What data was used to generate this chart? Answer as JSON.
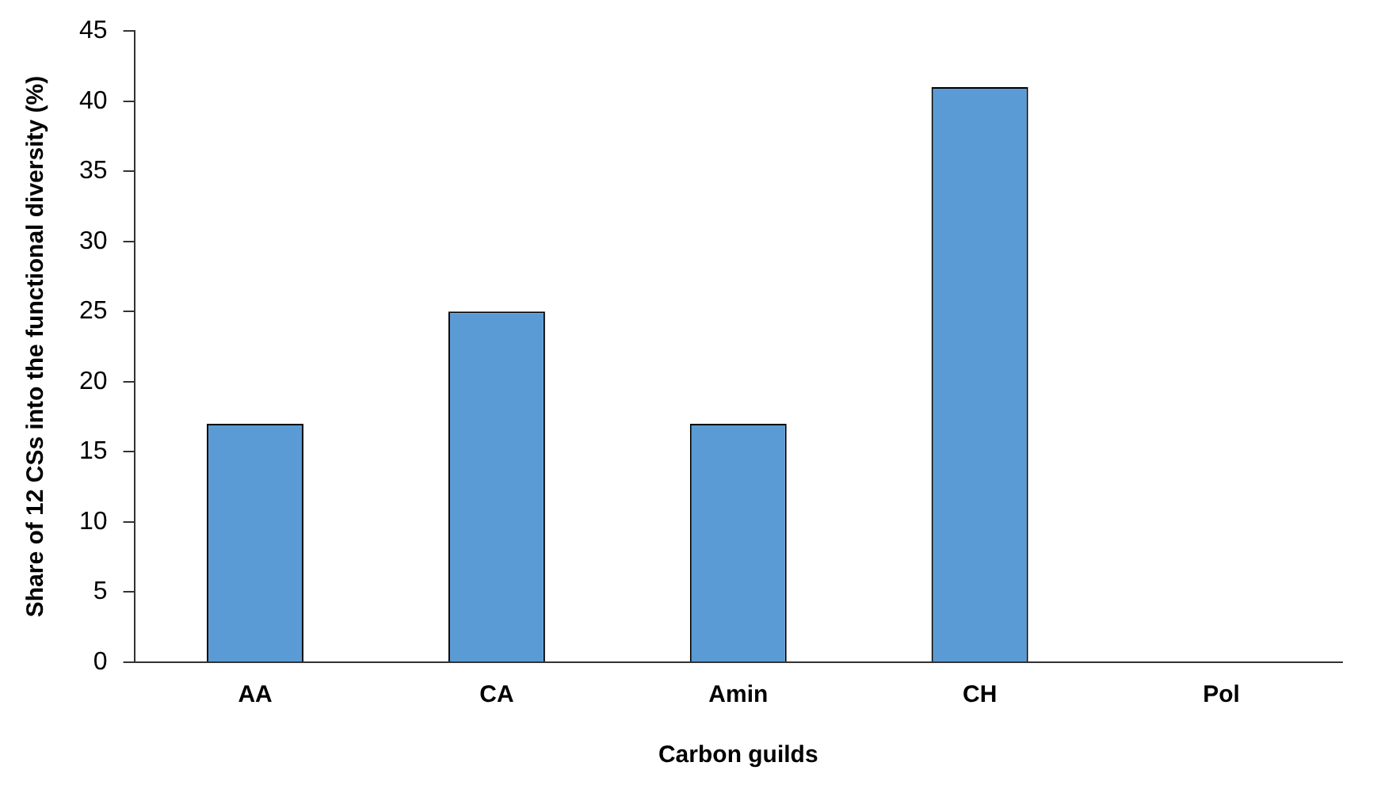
{
  "chart_data": {
    "type": "bar",
    "xlabel": "Carbon guilds",
    "ylabel": "Share of 12 CSs into the functional diversity (%)",
    "categories": [
      "AA",
      "CA",
      "Amin",
      "CH",
      "Pol"
    ],
    "values": [
      17,
      25,
      17,
      41,
      0
    ],
    "color": "#5b9bd5",
    "ylim": [
      0,
      45
    ],
    "yticks": [
      0,
      5,
      10,
      15,
      20,
      25,
      30,
      35,
      40,
      45
    ],
    "grid": false,
    "legend": false
  }
}
